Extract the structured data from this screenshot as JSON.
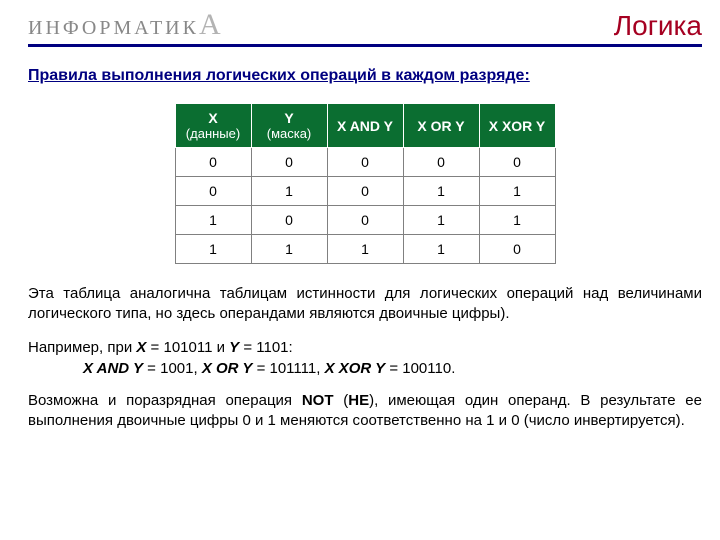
{
  "header": {
    "brand_prefix": "ИНФОРМАТИК",
    "brand_last": "А",
    "topic": "Логика"
  },
  "subtitle": "Правила выполнения логических операций в каждом разряде:",
  "table": {
    "h1_main": "X",
    "h1_sub": "(данные)",
    "h2_main": "Y",
    "h2_sub": "(маска)",
    "h3": "X AND Y",
    "h4": "X OR Y",
    "h5": "X XOR Y",
    "r0": {
      "c0": "0",
      "c1": "0",
      "c2": "0",
      "c3": "0",
      "c4": "0"
    },
    "r1": {
      "c0": "0",
      "c1": "1",
      "c2": "0",
      "c3": "1",
      "c4": "1"
    },
    "r2": {
      "c0": "1",
      "c1": "0",
      "c2": "0",
      "c3": "1",
      "c4": "1"
    },
    "r3": {
      "c0": "1",
      "c1": "1",
      "c2": "1",
      "c3": "1",
      "c4": "0"
    }
  },
  "para1": "Эта таблица аналогична таблицам истинности для логических операций над величинами логического типа, но здесь операндами являются двоичные цифры).",
  "example": {
    "pre": "Например, при ",
    "xlabel": "X",
    "xeq": " = 101011 и ",
    "ylabel": "Y",
    "yeq": " = 1101:",
    "and_lbl": "X AND Y",
    "and_val": " =  1001, ",
    "or_lbl": "X OR Y",
    "or_val": " =  101111,  ",
    "xor_lbl": "X XOR Y",
    "xor_val": " = 100110."
  },
  "para2": {
    "p1": "Возможна и поразрядная операция ",
    "not": "NOT",
    "p2": " (",
    "he": "НЕ",
    "p3": "), имеющая один операнд. В результате ее выполнения двоичные цифры 0 и 1 меняются соответственно на 1 и 0 (число инвертируется)."
  }
}
